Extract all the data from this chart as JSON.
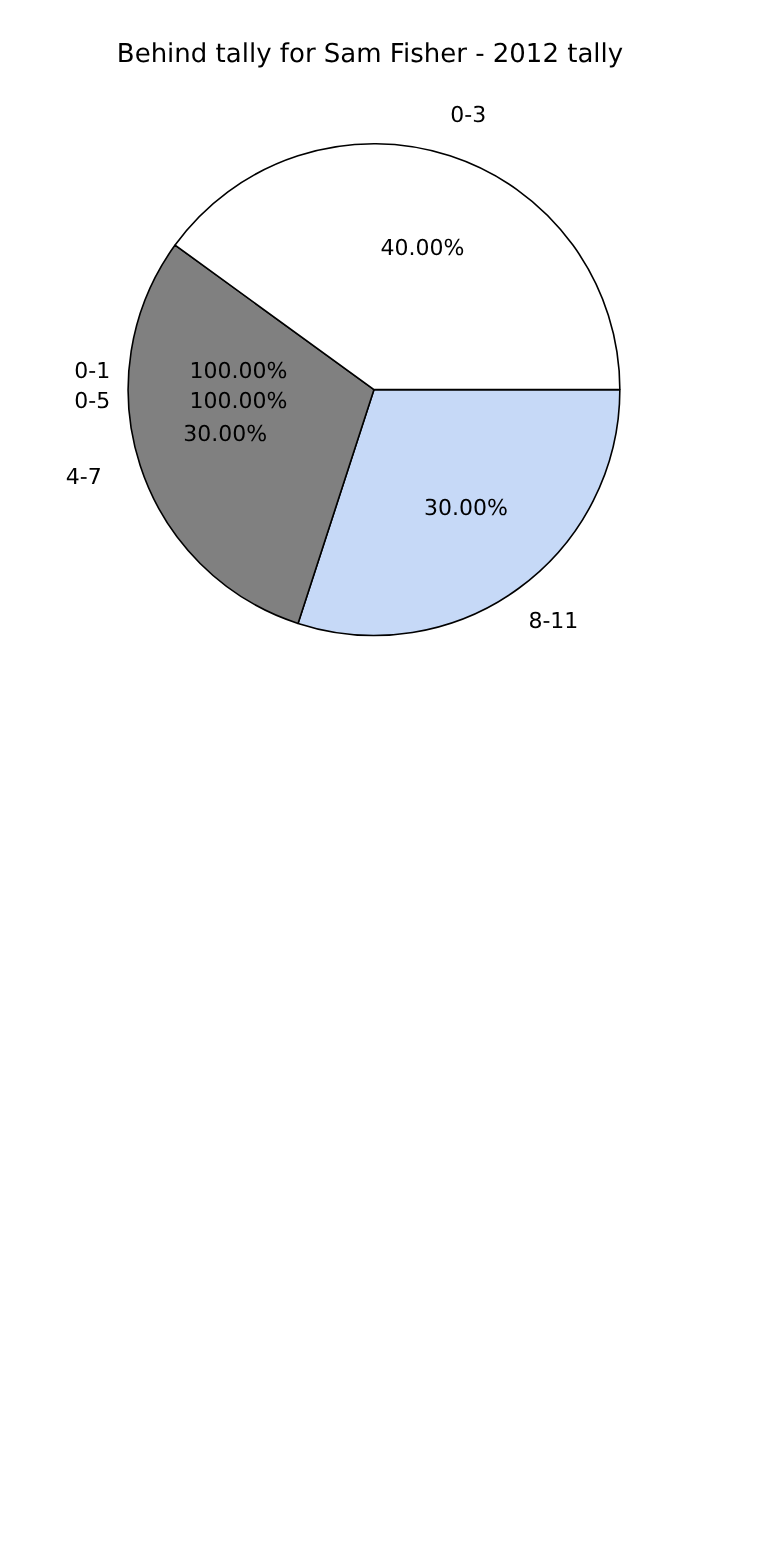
{
  "chart_data": {
    "type": "pie",
    "title": "Behind tally for Sam Fisher - 2012 tally",
    "categories": [
      "0-3",
      "4-7",
      "8-11"
    ],
    "values": [
      40,
      30,
      30
    ],
    "colors": [
      "#ffffff",
      "#808080",
      "#c6d9f7"
    ],
    "value_labels": [
      "40.00%",
      "30.00%",
      "30.00%"
    ],
    "annotations": [
      "0-1",
      "0-5",
      "100.00%",
      "100.00%"
    ],
    "legend": false
  }
}
